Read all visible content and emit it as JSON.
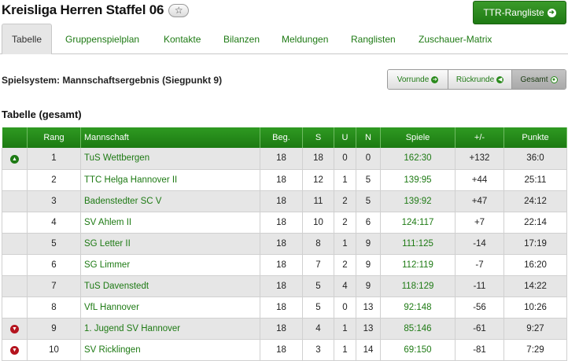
{
  "page_title": "Kreisliga Herren Staffel 06",
  "ttr_button": {
    "label": "TTR-Rangliste",
    "icon": "arrow-right-circle-icon"
  },
  "tabs": [
    {
      "label": "Tabelle",
      "active": true
    },
    {
      "label": "Gruppenspielplan"
    },
    {
      "label": "Kontakte"
    },
    {
      "label": "Bilanzen"
    },
    {
      "label": "Meldungen"
    },
    {
      "label": "Ranglisten"
    },
    {
      "label": "Zuschauer-Matrix"
    }
  ],
  "spielsystem": "Spielsystem: Mannschaftsergebnis (Siegpunkt 9)",
  "segment": [
    {
      "label": "Vorrunde",
      "icon": "arrow-right-circle-icon"
    },
    {
      "label": "Rückrunde",
      "icon": "arrow-left-circle-icon"
    },
    {
      "label": "Gesamt",
      "icon": "dot-circle-icon",
      "active": true
    }
  ],
  "subheading": "Tabelle (gesamt)",
  "table": {
    "headers": [
      "",
      "Rang",
      "Mannschaft",
      "Beg.",
      "S",
      "U",
      "N",
      "Spiele",
      "+/-",
      "Punkte"
    ],
    "rows": [
      {
        "status": "up",
        "rang": "1",
        "team": "TuS Wettbergen",
        "beg": "18",
        "s": "18",
        "u": "0",
        "n": "0",
        "spiele": "162:30",
        "diff": "+132",
        "punkte": "36:0"
      },
      {
        "status": "",
        "rang": "2",
        "team": "TTC Helga Hannover II",
        "beg": "18",
        "s": "12",
        "u": "1",
        "n": "5",
        "spiele": "139:95",
        "diff": "+44",
        "punkte": "25:11"
      },
      {
        "status": "",
        "rang": "3",
        "team": "Badenstedter SC V",
        "beg": "18",
        "s": "11",
        "u": "2",
        "n": "5",
        "spiele": "139:92",
        "diff": "+47",
        "punkte": "24:12"
      },
      {
        "status": "",
        "rang": "4",
        "team": "SV Ahlem II",
        "beg": "18",
        "s": "10",
        "u": "2",
        "n": "6",
        "spiele": "124:117",
        "diff": "+7",
        "punkte": "22:14"
      },
      {
        "status": "",
        "rang": "5",
        "team": "SG Letter II",
        "beg": "18",
        "s": "8",
        "u": "1",
        "n": "9",
        "spiele": "111:125",
        "diff": "-14",
        "punkte": "17:19"
      },
      {
        "status": "",
        "rang": "6",
        "team": "SG Limmer",
        "beg": "18",
        "s": "7",
        "u": "2",
        "n": "9",
        "spiele": "112:119",
        "diff": "-7",
        "punkte": "16:20"
      },
      {
        "status": "",
        "rang": "7",
        "team": "TuS Davenstedt",
        "beg": "18",
        "s": "5",
        "u": "4",
        "n": "9",
        "spiele": "118:129",
        "diff": "-11",
        "punkte": "14:22"
      },
      {
        "status": "",
        "rang": "8",
        "team": "VfL Hannover",
        "beg": "18",
        "s": "5",
        "u": "0",
        "n": "13",
        "spiele": "92:148",
        "diff": "-56",
        "punkte": "10:26"
      },
      {
        "status": "down",
        "rang": "9",
        "team": "1. Jugend SV Hannover",
        "beg": "18",
        "s": "4",
        "u": "1",
        "n": "13",
        "spiele": "85:146",
        "diff": "-61",
        "punkte": "9:27"
      },
      {
        "status": "down",
        "rang": "10",
        "team": "SV Ricklingen",
        "beg": "18",
        "s": "3",
        "u": "1",
        "n": "14",
        "spiele": "69:150",
        "diff": "-81",
        "punkte": "7:29"
      }
    ]
  },
  "colors": {
    "accent": "#1e7a14",
    "header_green": "#2a8a1c",
    "relegation": "#b4141e"
  }
}
